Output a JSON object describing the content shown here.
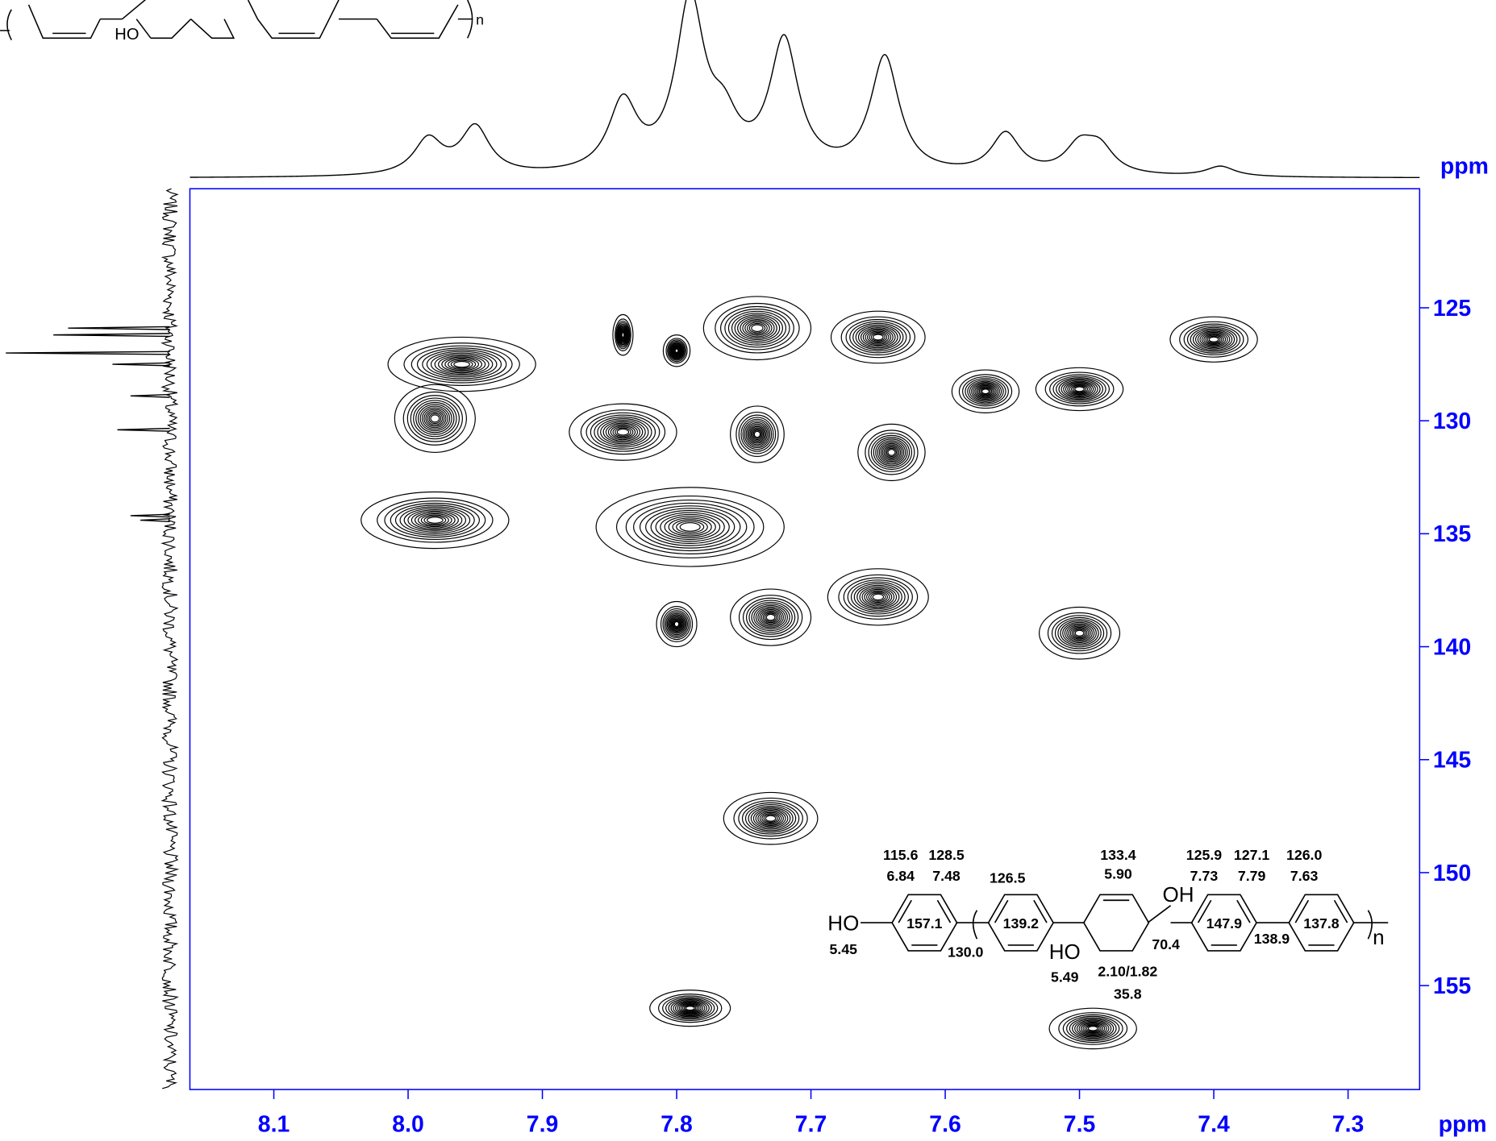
{
  "chart_data": {
    "type": "contour",
    "x_label": "ppm",
    "y_label": "ppm",
    "xlim": [
      8.1625,
      7.2467
    ],
    "ylim": [
      119.73,
      159.6
    ],
    "xticks": [
      8.1,
      {
        "value": 8,
        "label": "8.0"
      },
      7.9,
      7.8,
      7.7,
      7.6,
      7.5,
      7.4,
      7.3
    ],
    "yticks": [
      125,
      130,
      135,
      140,
      145,
      150,
      155
    ],
    "color": "#000000",
    "axis_color": "#0000ff",
    "peaks": {
      "x": [
        7.96,
        7.98,
        7.98,
        7.84,
        7.79,
        7.74,
        7.74,
        7.65,
        7.8,
        7.84,
        7.8,
        7.73,
        7.65,
        7.64,
        7.57,
        7.5,
        7.4,
        7.5,
        7.73,
        7.79,
        7.49
      ],
      "y": [
        127.5,
        129.9,
        134.4,
        130.5,
        134.7,
        130.6,
        125.9,
        126.3,
        126.9,
        126.2,
        139.0,
        138.7,
        137.8,
        131.4,
        128.7,
        128.6,
        126.4,
        139.4,
        147.6,
        156.0,
        156.9
      ],
      "x_width": [
        0.11,
        0.06,
        0.11,
        0.08,
        0.14,
        0.04,
        0.08,
        0.07,
        0.02,
        0.015,
        0.03,
        0.06,
        0.075,
        0.05,
        0.05,
        0.065,
        0.065,
        0.06,
        0.07,
        0.06,
        0.065
      ],
      "y_width": [
        2.4,
        3.0,
        2.5,
        2.5,
        3.5,
        2.5,
        2.8,
        2.3,
        1.4,
        1.8,
        2.0,
        2.5,
        2.5,
        2.5,
        1.9,
        1.9,
        2.0,
        2.3,
        2.3,
        1.6,
        1.8
      ]
    },
    "f2_projection": {
      "x": [
        7.985,
        7.95,
        7.84,
        7.79,
        7.765,
        7.72,
        7.645,
        7.555,
        7.5,
        7.485,
        7.395
      ],
      "heights": [
        21,
        28,
        41,
        100,
        25,
        77,
        69,
        24,
        16,
        15,
        6
      ]
    },
    "f1_projection": {
      "y": [
        125.9,
        126.2,
        127.0,
        127.5,
        128.9,
        130.4,
        134.2,
        134.4
      ],
      "heights": [
        62,
        71,
        100,
        35,
        24,
        32,
        24,
        18
      ]
    }
  },
  "structures": {
    "top_left": {
      "labels": [
        "HO",
        "n"
      ]
    },
    "inset": {
      "labels": [
        "115.6",
        "128.5",
        "6.84",
        "7.48",
        "126.5",
        "133.4",
        "5.90",
        "125.9",
        "127.1",
        "126.0",
        "7.73",
        "7.79",
        "7.63",
        "HO",
        "5.45",
        "157.1",
        "130.0",
        "139.2",
        "HO",
        "5.49",
        "OH",
        "70.4",
        "2.10/1.82",
        "35.8",
        "147.9",
        "138.9",
        "137.8",
        "n"
      ]
    }
  }
}
